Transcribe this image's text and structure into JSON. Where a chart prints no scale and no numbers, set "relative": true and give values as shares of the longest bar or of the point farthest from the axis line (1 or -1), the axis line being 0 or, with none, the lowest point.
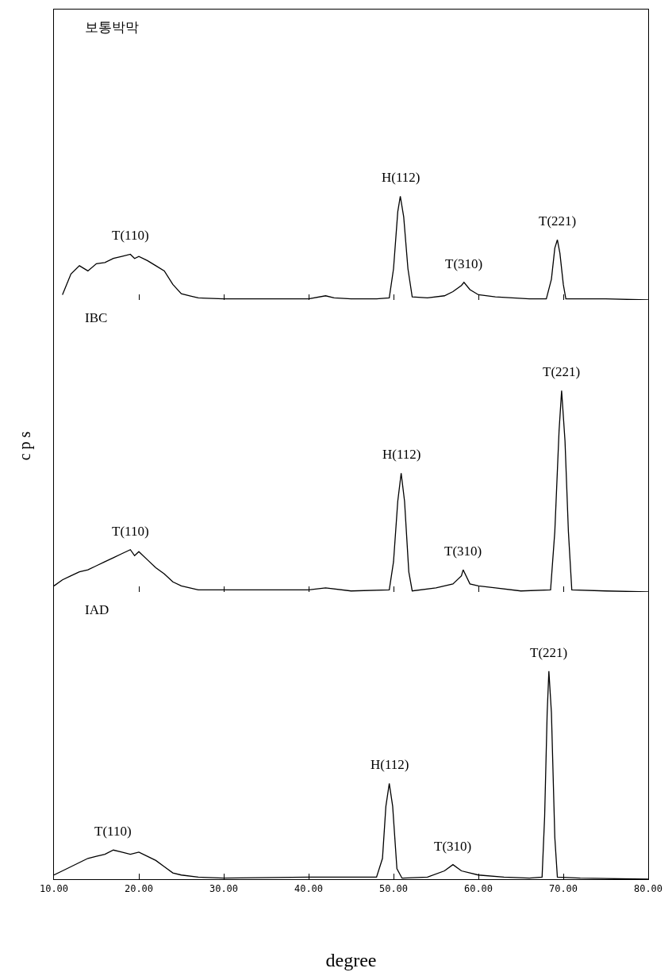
{
  "chart_data": [
    {
      "type": "line",
      "title": "보통박막",
      "relative": true,
      "tick_labels": false,
      "xlim": [
        10,
        80
      ],
      "xticks": [
        10,
        20,
        30,
        40,
        50,
        60,
        70,
        80
      ],
      "x": [
        11,
        12,
        13,
        14,
        15,
        16,
        17,
        18,
        19,
        19.5,
        20,
        21,
        22,
        23,
        24,
        25,
        26,
        27,
        30,
        35,
        40,
        42,
        43,
        45,
        48,
        49.5,
        50,
        50.5,
        50.8,
        51.2,
        51.7,
        52.2,
        54,
        56,
        57,
        58,
        58.3,
        59,
        60,
        62,
        64,
        66,
        68,
        68.6,
        69,
        69.3,
        69.6,
        70,
        70.3,
        72,
        75,
        80
      ],
      "series": [
        {
          "color": "#000000",
          "values": [
            0.05,
            0.25,
            0.33,
            0.28,
            0.35,
            0.36,
            0.4,
            0.42,
            0.44,
            0.4,
            0.42,
            0.38,
            0.33,
            0.28,
            0.15,
            0.06,
            0.04,
            0.02,
            0.01,
            0.01,
            0.01,
            0.04,
            0.02,
            0.01,
            0.01,
            0.02,
            0.3,
            0.85,
            1,
            0.8,
            0.3,
            0.03,
            0.02,
            0.04,
            0.08,
            0.14,
            0.17,
            0.1,
            0.05,
            0.03,
            0.02,
            0.01,
            0.01,
            0.2,
            0.5,
            0.58,
            0.45,
            0.15,
            0.01,
            0.01,
            0.01,
            0
          ]
        }
      ],
      "annotations": [
        {
          "text": "T(110)",
          "x": 19,
          "y": 0.44
        },
        {
          "text": "H(112)",
          "x": 50.8,
          "y": 1
        },
        {
          "text": "T(310)",
          "x": 58.3,
          "y": 0.17
        },
        {
          "text": "T(221)",
          "x": 69.3,
          "y": 0.58
        }
      ]
    },
    {
      "type": "line",
      "title": "IBC",
      "ylabel": "c p s",
      "relative": true,
      "tick_labels": false,
      "xlim": [
        10,
        80
      ],
      "xticks": [
        10,
        20,
        30,
        40,
        50,
        60,
        70,
        80
      ],
      "x": [
        10,
        11,
        12,
        13,
        14,
        15,
        16,
        17,
        18,
        19,
        19.5,
        20,
        21,
        22,
        23,
        24,
        25,
        27,
        30,
        40,
        42,
        45,
        49.5,
        50,
        50.5,
        50.9,
        51.3,
        51.8,
        52.2,
        55,
        57,
        58,
        58.2,
        59,
        60,
        62,
        65,
        68.5,
        69,
        69.5,
        69.8,
        70.2,
        70.6,
        71,
        75,
        80
      ],
      "series": [
        {
          "color": "#000000",
          "values": [
            0.03,
            0.06,
            0.08,
            0.1,
            0.11,
            0.13,
            0.15,
            0.17,
            0.19,
            0.21,
            0.18,
            0.2,
            0.16,
            0.12,
            0.09,
            0.05,
            0.03,
            0.01,
            0.01,
            0.01,
            0.02,
            0.005,
            0.01,
            0.15,
            0.45,
            0.59,
            0.45,
            0.1,
            0.005,
            0.02,
            0.04,
            0.08,
            0.11,
            0.04,
            0.03,
            0.02,
            0.005,
            0.01,
            0.3,
            0.8,
            1,
            0.75,
            0.3,
            0.01,
            0.005,
            0
          ]
        }
      ],
      "annotations": [
        {
          "text": "T(110)",
          "x": 19,
          "y": 0.21
        },
        {
          "text": "H(112)",
          "x": 50.9,
          "y": 0.59
        },
        {
          "text": "T(310)",
          "x": 58.2,
          "y": 0.11
        },
        {
          "text": "T(221)",
          "x": 69.8,
          "y": 1
        }
      ]
    },
    {
      "type": "line",
      "title": "IAD",
      "xlabel": "degree",
      "relative": true,
      "tick_labels": "x",
      "xlim": [
        10,
        80
      ],
      "xticks": [
        {
          "value": 10,
          "label": "10.00"
        },
        {
          "value": 20,
          "label": "20.00"
        },
        {
          "value": 30,
          "label": "30.00"
        },
        {
          "value": 40,
          "label": "40.00"
        },
        {
          "value": 50,
          "label": "50.00"
        },
        {
          "value": 60,
          "label": "60.00"
        },
        {
          "value": 70,
          "label": "70.00"
        },
        {
          "value": 80,
          "label": "80.00"
        }
      ],
      "x": [
        10,
        11,
        12,
        13,
        14,
        15,
        16,
        17,
        18,
        19,
        20,
        21,
        22,
        23,
        24,
        25,
        27,
        30,
        40,
        45,
        48,
        48.7,
        49.1,
        49.5,
        49.9,
        50.4,
        51,
        54,
        56,
        57,
        58,
        60,
        63,
        66,
        67.5,
        67.8,
        68.1,
        68.3,
        68.6,
        69,
        69.3,
        72,
        80
      ],
      "series": [
        {
          "color": "#000000",
          "values": [
            0.02,
            0.04,
            0.06,
            0.08,
            0.1,
            0.11,
            0.12,
            0.14,
            0.13,
            0.12,
            0.13,
            0.11,
            0.09,
            0.06,
            0.03,
            0.02,
            0.01,
            0.005,
            0.01,
            0.01,
            0.01,
            0.1,
            0.35,
            0.46,
            0.35,
            0.05,
            0.005,
            0.01,
            0.04,
            0.07,
            0.04,
            0.02,
            0.01,
            0.005,
            0.01,
            0.3,
            0.8,
            1,
            0.8,
            0.2,
            0.01,
            0.005,
            0
          ]
        }
      ],
      "annotations": [
        {
          "text": "T(110)",
          "x": 17,
          "y": 0.14
        },
        {
          "text": "H(112)",
          "x": 49.5,
          "y": 0.46
        },
        {
          "text": "T(310)",
          "x": 57,
          "y": 0.07
        },
        {
          "text": "T(221)",
          "x": 68.3,
          "y": 1
        }
      ]
    }
  ]
}
